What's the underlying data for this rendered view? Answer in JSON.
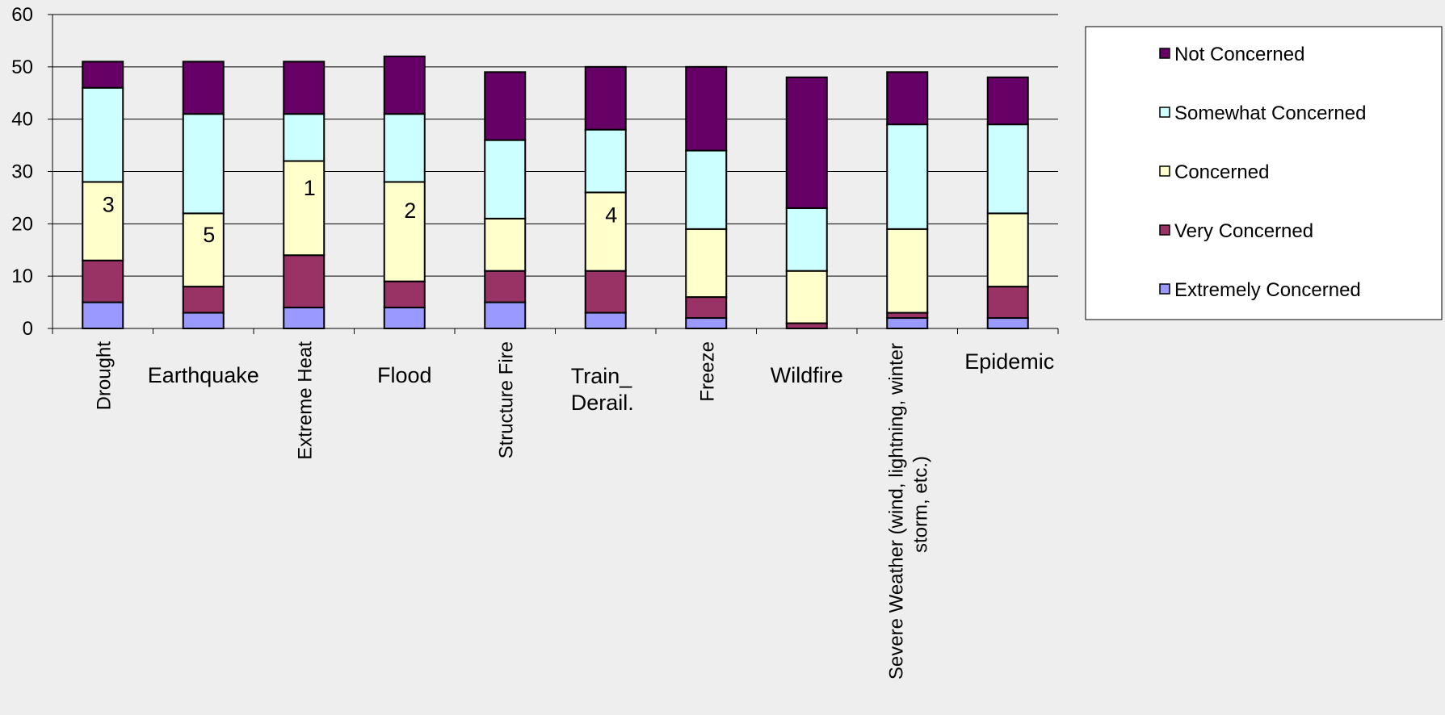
{
  "chart_data": {
    "type": "bar",
    "stacked": true,
    "title": "",
    "xlabel": "",
    "ylabel": "",
    "ylim": [
      0,
      60
    ],
    "yticks": [
      0,
      10,
      20,
      30,
      40,
      50,
      60
    ],
    "grid": true,
    "legend_position": "right",
    "categories": [
      "Drought",
      "Earthquake",
      "Extreme Heat",
      "Flood",
      "Structure Fire",
      "Train_ Derail.",
      "Freeze",
      "Wildfire",
      "Severe Weather (wind, lightning, winter storm, etc.)",
      "Epidemic"
    ],
    "series": [
      {
        "name": "Extremely Concerned",
        "color": "#9999ff",
        "values": [
          5,
          3,
          4,
          4,
          5,
          3,
          2,
          0,
          2,
          2
        ]
      },
      {
        "name": "Very Concerned",
        "color": "#993366",
        "values": [
          8,
          5,
          10,
          5,
          6,
          8,
          4,
          1,
          1,
          6
        ]
      },
      {
        "name": "Concerned",
        "color": "#ffffcc",
        "values": [
          15,
          14,
          18,
          19,
          10,
          15,
          13,
          10,
          16,
          14
        ]
      },
      {
        "name": "Somewhat Concerned",
        "color": "#ccffff",
        "values": [
          18,
          19,
          9,
          13,
          15,
          12,
          15,
          12,
          20,
          17
        ]
      },
      {
        "name": "Not Concerned",
        "color": "#660066",
        "values": [
          5,
          10,
          10,
          11,
          13,
          12,
          16,
          25,
          10,
          9
        ]
      }
    ],
    "rank_labels": [
      "3",
      "5",
      "1",
      "2",
      "",
      "4",
      "",
      "",
      "",
      ""
    ]
  }
}
